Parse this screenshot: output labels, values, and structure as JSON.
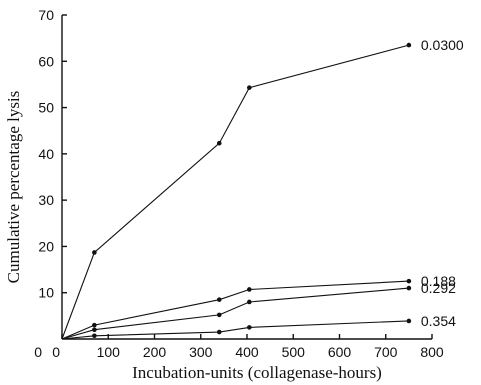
{
  "chart_data": {
    "type": "line",
    "title": "",
    "xlabel": "Incubation-units (collagenase-hours)",
    "ylabel": "Cumulative percentage lysis",
    "xlim": [
      0,
      800
    ],
    "ylim": [
      0,
      70
    ],
    "xticks": [
      0,
      100,
      200,
      300,
      400,
      500,
      600,
      700,
      800
    ],
    "yticks": [
      0,
      10,
      20,
      30,
      40,
      50,
      60,
      70
    ],
    "grid": false,
    "legend": "none",
    "series": [
      {
        "name": "0.0300",
        "x": [
          0,
          70,
          340,
          405,
          750
        ],
        "y": [
          0,
          18.7,
          42.3,
          54.3,
          63.5
        ]
      },
      {
        "name": "0.188",
        "x": [
          0,
          70,
          340,
          405,
          750
        ],
        "y": [
          0,
          3.0,
          8.5,
          10.7,
          12.5
        ]
      },
      {
        "name": "0.292",
        "x": [
          0,
          70,
          340,
          405,
          750
        ],
        "y": [
          0,
          2.0,
          5.2,
          8.0,
          11.0
        ]
      },
      {
        "name": "0.354",
        "x": [
          0,
          70,
          340,
          405,
          750
        ],
        "y": [
          0,
          0.7,
          1.5,
          2.5,
          3.9
        ]
      }
    ]
  }
}
